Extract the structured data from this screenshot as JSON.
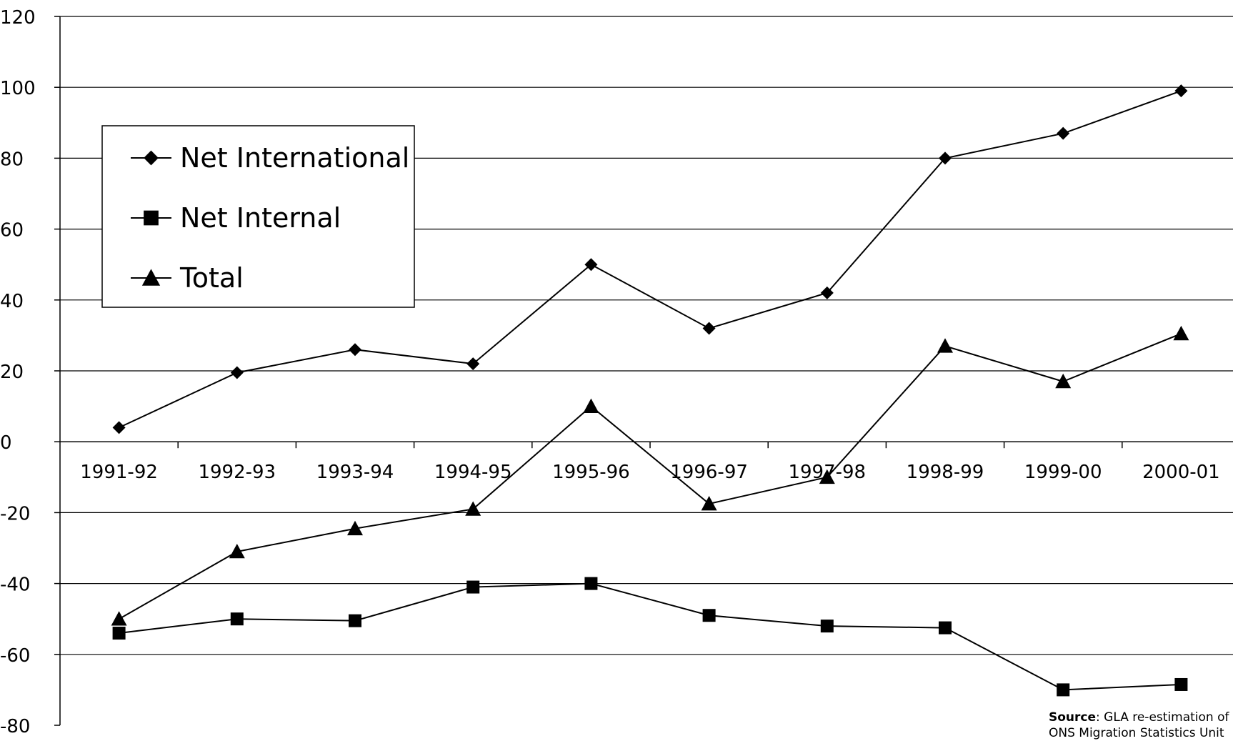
{
  "chart_data": {
    "type": "line",
    "title": "",
    "xlabel": "",
    "ylabel": "",
    "ylim": [
      -80,
      120
    ],
    "y_ticks": [
      120,
      100,
      80,
      60,
      40,
      20,
      0,
      -20,
      -40,
      -60,
      -80
    ],
    "y_tick_labels": [
      "120",
      "100",
      "80",
      "60",
      "40",
      "20",
      "0",
      "-20",
      "-40",
      "-60",
      "-80"
    ],
    "grid": "horizontal",
    "legend_position": "top-left",
    "categories": [
      "1991-92",
      "1992-93",
      "1993-94",
      "1994-95",
      "1995-96",
      "1996-97",
      "1997-98",
      "1998-99",
      "1999-00",
      "2000-01"
    ],
    "series": [
      {
        "name": "Net International",
        "marker": "diamond",
        "values": [
          4,
          19.5,
          26,
          22,
          50,
          32,
          42,
          80,
          87,
          99
        ]
      },
      {
        "name": "Net Internal",
        "marker": "square",
        "values": [
          -54,
          -50,
          -50.5,
          -41,
          -40,
          -49,
          -52,
          -52.5,
          -70,
          -68.5
        ]
      },
      {
        "name": "Total",
        "marker": "triangle",
        "values": [
          -50,
          -31,
          -24.5,
          -19,
          10,
          -17.5,
          -10,
          27,
          17,
          30.5
        ]
      }
    ],
    "source": {
      "label": "Source",
      "text": ": GLA re-estimation of l",
      "line2": "ONS Migration Statistics Unit"
    }
  }
}
